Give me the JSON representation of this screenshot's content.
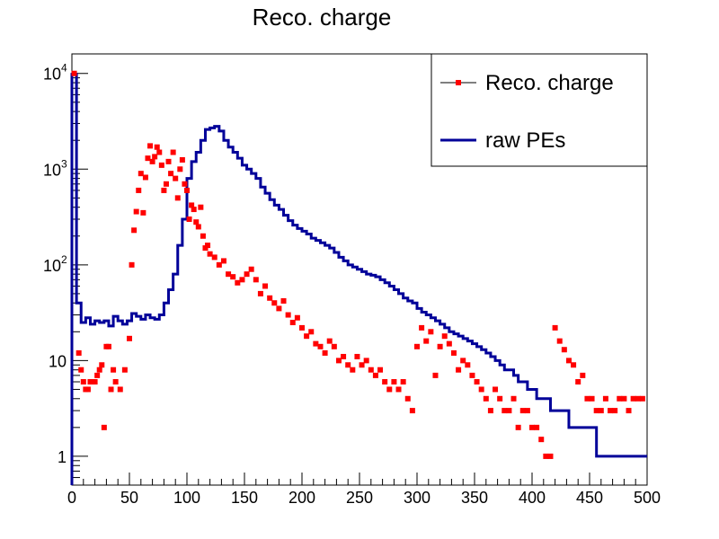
{
  "chart_data": {
    "type": "scatter",
    "title": "Reco. charge",
    "xlabel": "",
    "ylabel": "",
    "xlim": [
      0,
      500
    ],
    "ylim": [
      0.5,
      16000
    ],
    "y_scale": "log",
    "x_ticks": [
      0,
      50,
      100,
      150,
      200,
      250,
      300,
      350,
      400,
      450,
      500
    ],
    "x_tick_labels": [
      "0",
      "50",
      "100",
      "150",
      "200",
      "250",
      "300",
      "350",
      "400",
      "450",
      "500"
    ],
    "y_ticks": [
      1,
      10,
      100,
      1000,
      10000
    ],
    "y_tick_labels": [
      {
        "base": "1",
        "exp": ""
      },
      {
        "base": "10",
        "exp": ""
      },
      {
        "base": "10",
        "exp": "2"
      },
      {
        "base": "10",
        "exp": "3"
      },
      {
        "base": "10",
        "exp": "4"
      }
    ],
    "legend_position": "top-right",
    "series": [
      {
        "name": "Reco. charge",
        "kind": "markers",
        "color": "#ff0000",
        "x": [
          2,
          6,
          8,
          10,
          12,
          14,
          16,
          18,
          20,
          22,
          24,
          26,
          28,
          30,
          32,
          34,
          36,
          38,
          42,
          46,
          50,
          52,
          54,
          56,
          58,
          60,
          62,
          64,
          66,
          68,
          70,
          72,
          74,
          76,
          78,
          80,
          82,
          84,
          86,
          88,
          90,
          92,
          94,
          96,
          98,
          100,
          102,
          104,
          106,
          108,
          110,
          112,
          114,
          116,
          118,
          120,
          124,
          128,
          132,
          136,
          140,
          144,
          148,
          152,
          156,
          160,
          164,
          168,
          172,
          176,
          180,
          184,
          188,
          192,
          196,
          200,
          204,
          208,
          212,
          216,
          220,
          224,
          228,
          232,
          236,
          240,
          244,
          248,
          252,
          256,
          260,
          264,
          268,
          272,
          276,
          280,
          284,
          288,
          292,
          296,
          300,
          304,
          308,
          312,
          316,
          320,
          324,
          328,
          332,
          336,
          340,
          344,
          348,
          352,
          356,
          360,
          364,
          368,
          372,
          376,
          380,
          384,
          388,
          392,
          396,
          400,
          404,
          408,
          412,
          416,
          420,
          424,
          428,
          432,
          436,
          440,
          444,
          448,
          452,
          456,
          460,
          464,
          468,
          472,
          476,
          480,
          484,
          488,
          492,
          496
        ],
        "y": [
          10000,
          12,
          8,
          6,
          5,
          5,
          6,
          6,
          6,
          7,
          8,
          9,
          2,
          14,
          14,
          5,
          8,
          6,
          5,
          8,
          17,
          100,
          230,
          360,
          600,
          900,
          350,
          820,
          1300,
          1750,
          1200,
          1350,
          1700,
          1500,
          1100,
          600,
          700,
          1200,
          900,
          1500,
          800,
          500,
          1000,
          1250,
          700,
          600,
          300,
          420,
          380,
          280,
          250,
          400,
          200,
          150,
          160,
          130,
          120,
          100,
          110,
          80,
          75,
          65,
          70,
          80,
          90,
          70,
          50,
          60,
          45,
          40,
          35,
          42,
          30,
          25,
          28,
          22,
          18,
          20,
          15,
          14,
          12,
          16,
          14,
          10,
          11,
          9,
          8,
          11,
          9,
          10,
          8,
          7,
          8,
          6,
          5,
          6,
          5,
          6,
          4,
          3,
          14,
          22,
          16,
          20,
          7,
          14,
          18,
          15,
          12,
          8,
          10,
          9,
          7,
          6,
          5,
          4,
          3,
          5,
          4,
          3,
          3,
          4,
          2,
          3,
          3,
          2,
          2,
          1.5,
          1,
          1,
          22,
          16,
          13,
          10,
          9,
          6,
          7,
          4,
          4,
          3,
          3,
          4,
          3,
          3,
          4,
          4,
          3,
          4,
          4,
          4
        ],
        "note": ""
      },
      {
        "name": "raw PEs",
        "kind": "step",
        "color": "#000099",
        "bin_width": 4,
        "bin_edges_start": 0,
        "values": [
          9800,
          40,
          25,
          28,
          24,
          26,
          25,
          26,
          23,
          29,
          26,
          24,
          26,
          31,
          29,
          27,
          30,
          28,
          27,
          30,
          40,
          55,
          80,
          160,
          300,
          800,
          1200,
          1500,
          2000,
          2600,
          2700,
          2800,
          2500,
          2000,
          1700,
          1500,
          1300,
          1100,
          1000,
          900,
          800,
          650,
          560,
          480,
          420,
          380,
          330,
          290,
          260,
          240,
          225,
          210,
          190,
          180,
          170,
          160,
          150,
          135,
          120,
          110,
          100,
          95,
          90,
          85,
          80,
          78,
          75,
          70,
          65,
          60,
          55,
          50,
          45,
          42,
          40,
          35,
          32,
          30,
          28,
          26,
          24,
          22,
          20,
          19,
          18,
          17,
          16,
          15,
          14,
          13,
          12,
          11,
          10,
          9,
          8,
          8,
          7,
          6,
          6,
          5,
          5,
          4,
          4,
          4,
          3,
          3,
          3,
          3,
          2,
          2,
          2,
          2,
          2,
          2,
          1,
          1,
          1,
          1,
          1,
          1,
          1,
          1,
          1,
          1,
          1
        ]
      }
    ]
  }
}
